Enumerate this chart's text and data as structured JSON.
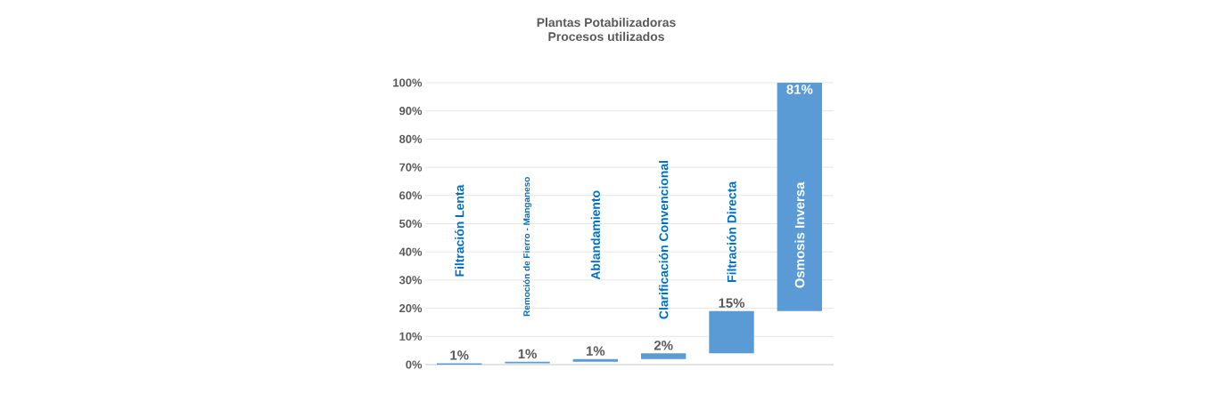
{
  "chart_data": {
    "type": "bar",
    "title": "Plantas Potabilizadoras",
    "subtitle": "Procesos utilizados",
    "categories": [
      "Filtración Lenta",
      "Remoción de Fierro - Manganeso",
      "Ablandamiento",
      "Clarificación Convencional",
      "Filtración Directa",
      "Osmosis Inversa"
    ],
    "values": [
      0.5,
      0.5,
      1,
      2,
      15,
      81
    ],
    "base": [
      0,
      0.5,
      1,
      2,
      4,
      19
    ],
    "value_labels": [
      "1%",
      "1%",
      "1%",
      "2%",
      "15%",
      "81%"
    ],
    "color": "#5b9bd5",
    "ylim": [
      0,
      100
    ],
    "yticks": [
      {
        "value": 0,
        "label": "0%"
      },
      {
        "value": 10,
        "label": "10%"
      },
      {
        "value": 20,
        "label": "20%"
      },
      {
        "value": 30,
        "label": "30%"
      },
      {
        "value": 40,
        "label": "40%"
      },
      {
        "value": 50,
        "label": "50%"
      },
      {
        "value": 60,
        "label": "60%"
      },
      {
        "value": 70,
        "label": "70%"
      },
      {
        "value": 80,
        "label": "80%"
      },
      {
        "value": 90,
        "label": "90%"
      },
      {
        "value": 100,
        "label": "100%"
      }
    ],
    "grid": "y"
  }
}
